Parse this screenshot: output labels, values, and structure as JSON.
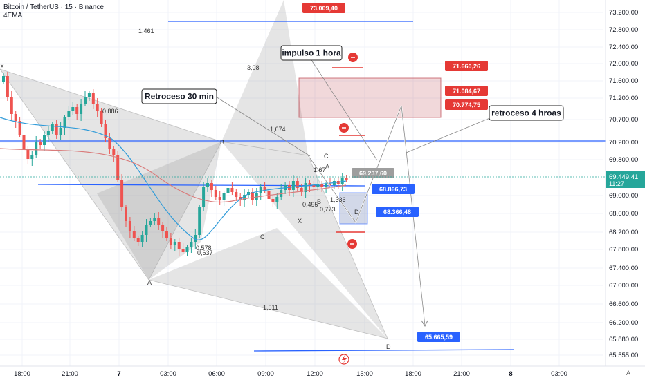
{
  "header": {
    "title": "Bitcoin / TetherUS · 15 · Binance",
    "indicator": "4EMA"
  },
  "colors": {
    "up": "#26a69a",
    "down": "#ef5350",
    "blue_line": "#2962ff",
    "red_zone": "#b22833",
    "ema_fast": "#2f9bd9",
    "ema_slow": "#d97b7b",
    "pattern_fill": "#8a8a8a",
    "grid": "#f0f3fa",
    "axis_text": "#131722"
  },
  "chart_data": {
    "type": "candlestick",
    "symbol": "Bitcoin / TetherUS",
    "interval": "15",
    "exchange": "Binance",
    "y_axis": {
      "ticks": [
        "73.200,00",
        "72.800,00",
        "72.400,00",
        "72.000,00",
        "71.600,00",
        "71.200,00",
        "70.700,00",
        "70.200,00",
        "69.800,00",
        "69.000,00",
        "68.600,00",
        "68.200,00",
        "67.800,00",
        "67.400,00",
        "67.000,00",
        "66.600,00",
        "66.200,00",
        "65.880,00",
        "65.555,00"
      ],
      "current_price": "69.449,41",
      "countdown": "11:27"
    },
    "x_axis": {
      "ticks": [
        "18:00",
        "21:00",
        "7",
        "03:00",
        "06:00",
        "09:00",
        "12:00",
        "15:00",
        "18:00",
        "21:00",
        "8",
        "03:00"
      ]
    },
    "price_labels": [
      {
        "text": "73.009,40",
        "kind": "red"
      },
      {
        "text": "71.660,26",
        "kind": "red"
      },
      {
        "text": "71.084,67",
        "kind": "red"
      },
      {
        "text": "70.774,75",
        "kind": "red"
      },
      {
        "text": "69.237,60",
        "kind": "gray"
      },
      {
        "text": "68.866,73",
        "kind": "blue"
      },
      {
        "text": "68.366,48",
        "kind": "blue"
      },
      {
        "text": "65.665,59",
        "kind": "blue"
      }
    ],
    "callouts": [
      "impulso 1 hora",
      "Retroceso 30 min",
      "retroceso 4 hroas"
    ],
    "pattern_labels": [
      "1,461",
      "3,08",
      "0,886",
      "1,674",
      "1,511",
      "0,578",
      "0,637",
      "0,495",
      "0,773",
      "1,67",
      "1,336",
      "X",
      "A",
      "B",
      "C",
      "D",
      "X",
      "A",
      "B",
      "C",
      "D"
    ]
  }
}
